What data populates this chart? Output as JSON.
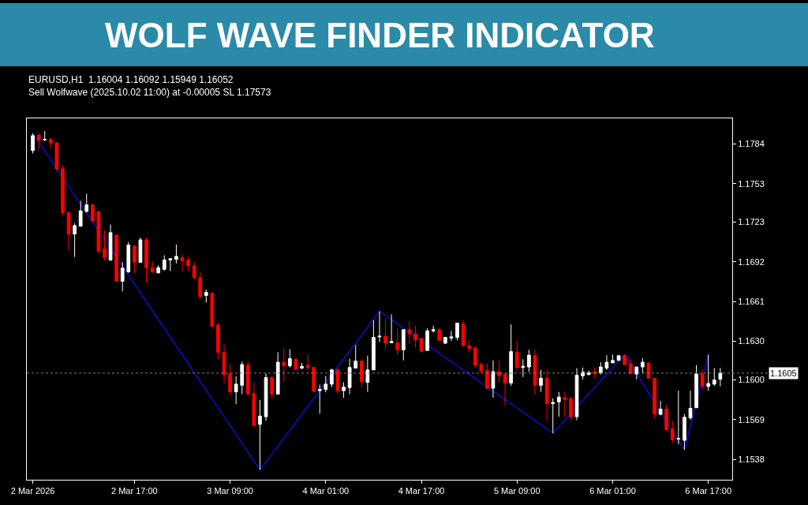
{
  "chart_data": {
    "type": "candlestick",
    "title": "WOLF WAVE FINDER INDICATOR",
    "annotations": [
      "EURUSD,H1  1.16004 1.16092 1.15949 1.16052",
      "Sell Wolfwave (2025.10.02 11:00) at -0.00005 SL 1.17573"
    ],
    "ylim": [
      1.1522,
      1.1804
    ],
    "yticks": [
      1.1784,
      1.1753,
      1.1723,
      1.1692,
      1.1661,
      {
        "value": 1.163,
        "label": "1.1630"
      },
      {
        "value": 1.16,
        "label": "1.1600"
      },
      1.1569,
      1.1538
    ],
    "xlim": [
      "2026-03-01T23:00",
      "2026-03-06T21:00"
    ],
    "xticks": [
      {
        "value": "2026-03-02T00:00",
        "label": "2 Mar 2026"
      },
      {
        "value": "2026-03-02T17:00",
        "label": "2 Mar 17:00"
      },
      {
        "value": "2026-03-03T09:00",
        "label": "3 Mar 09:00"
      },
      {
        "value": "2026-03-04T01:00",
        "label": "4 Mar 01:00"
      },
      {
        "value": "2026-03-04T17:00",
        "label": "4 Mar 17:00"
      },
      {
        "value": "2026-03-05T09:00",
        "label": "5 Mar 09:00"
      },
      {
        "value": "2026-03-06T01:00",
        "label": "6 Mar 01:00"
      },
      {
        "value": "2026-03-06T17:00",
        "label": "6 Mar 17:00"
      }
    ],
    "ref_lines": [
      {
        "axis": "y",
        "value": 1.16052,
        "label": "1.1605",
        "color": "#808080",
        "line_style": "dotted"
      }
    ],
    "grid": false,
    "series": [
      {
        "type": "candlestick",
        "colors": [
          "#ffffff",
          "#ff0000",
          "#ffffff",
          "#ff0000",
          "#ff0000",
          "#ff0000",
          "#ff0000",
          "#ffffff",
          "#ffffff",
          "#ffffff",
          "#ff0000",
          "#ff0000",
          "#ff0000",
          "#ffffff",
          "#ff0000",
          "#ffffff",
          "#ffffff",
          "#ff0000",
          "#ffffff",
          "#ff0000",
          "#ff0000",
          "#ffffff",
          "#ffffff",
          "#ffffff",
          "#ffffff",
          "#ff0000",
          "#ff0000",
          "#ff0000",
          "#ff0000",
          "#ffffff",
          "#ff0000",
          "#ff0000",
          "#ff0000",
          "#ff0000",
          "#ffffff",
          "#ffffff",
          "#ff0000",
          "#ff0000",
          "#ffffff",
          "#ffffff",
          "#ff0000",
          "#ffffff",
          "#ff0000",
          "#ffffff",
          "#ff0000",
          "#ffffff",
          "#ff0000",
          "#ff0000",
          "#ffffff",
          "#ffffff",
          "#ffffff",
          "#ff0000",
          "#ffffff",
          "#ffffff",
          "#ffffff",
          "#ff0000",
          "#ffffff",
          "#ffffff",
          "#ffffff",
          "#ff0000",
          "#ffffff",
          "#ff0000",
          "#ffffff",
          "#ff0000",
          "#ff0000",
          "#ff0000",
          "#ffffff",
          "#ffffff",
          "#ff0000",
          "#ffffff",
          "#ffffff",
          "#ffffff",
          "#ff0000",
          "#ff0000",
          "#ff0000",
          "#ff0000",
          "#ff0000",
          "#ffffff",
          "#ff0000",
          "#ff0000",
          "#ffffff",
          "#ff0000",
          "#ffffff",
          "#ffffff",
          "#ff0000",
          "#ffffff",
          "#ff0000",
          "#ffffff",
          "#ffffff",
          "#ff0000",
          "#ff0000",
          "#ffffff",
          "#ffffff",
          "#ffffff",
          "#ff0000",
          "#ffffff",
          "#ffffff",
          "#ffffff",
          "#ffffff",
          "#ff0000",
          "#ff0000",
          "#ffffff",
          "#ffffff",
          "#ff0000",
          "#ff0000",
          "#ffffff",
          "#ff0000",
          "#ff0000",
          "#ffffff",
          "#ffffff",
          "#ffffff",
          "#ffffff",
          "#ff0000",
          "#ffffff",
          "#ffffff",
          "#ffffff"
        ],
        "x": [
          "2026-03-02T00:00",
          "2026-03-02T01:00",
          "2026-03-02T02:00",
          "2026-03-02T03:00",
          "2026-03-02T04:00",
          "2026-03-02T05:00",
          "2026-03-02T06:00",
          "2026-03-02T07:00",
          "2026-03-02T08:00",
          "2026-03-02T09:00",
          "2026-03-02T10:00",
          "2026-03-02T11:00",
          "2026-03-02T12:00",
          "2026-03-02T13:00",
          "2026-03-02T14:00",
          "2026-03-02T15:00",
          "2026-03-02T16:00",
          "2026-03-02T17:00",
          "2026-03-02T18:00",
          "2026-03-02T19:00",
          "2026-03-02T20:00",
          "2026-03-02T21:00",
          "2026-03-02T22:00",
          "2026-03-02T23:00",
          "2026-03-03T00:00",
          "2026-03-03T01:00",
          "2026-03-03T02:00",
          "2026-03-03T03:00",
          "2026-03-03T04:00",
          "2026-03-03T05:00",
          "2026-03-03T06:00",
          "2026-03-03T07:00",
          "2026-03-03T08:00",
          "2026-03-03T09:00",
          "2026-03-03T10:00",
          "2026-03-03T11:00",
          "2026-03-03T12:00",
          "2026-03-03T13:00",
          "2026-03-03T14:00",
          "2026-03-03T15:00",
          "2026-03-03T16:00",
          "2026-03-03T17:00",
          "2026-03-03T18:00",
          "2026-03-03T19:00",
          "2026-03-03T20:00",
          "2026-03-03T21:00",
          "2026-03-03T22:00",
          "2026-03-03T23:00",
          "2026-03-04T00:00",
          "2026-03-04T01:00",
          "2026-03-04T02:00",
          "2026-03-04T03:00",
          "2026-03-04T04:00",
          "2026-03-04T05:00",
          "2026-03-04T06:00",
          "2026-03-04T07:00",
          "2026-03-04T08:00",
          "2026-03-04T09:00",
          "2026-03-04T10:00",
          "2026-03-04T11:00",
          "2026-03-04T12:00",
          "2026-03-04T13:00",
          "2026-03-04T14:00",
          "2026-03-04T15:00",
          "2026-03-04T16:00",
          "2026-03-04T17:00",
          "2026-03-04T18:00",
          "2026-03-04T19:00",
          "2026-03-04T20:00",
          "2026-03-04T21:00",
          "2026-03-04T22:00",
          "2026-03-04T23:00",
          "2026-03-05T00:00",
          "2026-03-05T01:00",
          "2026-03-05T02:00",
          "2026-03-05T03:00",
          "2026-03-05T04:00",
          "2026-03-05T05:00",
          "2026-03-05T06:00",
          "2026-03-05T07:00",
          "2026-03-05T08:00",
          "2026-03-05T09:00",
          "2026-03-05T10:00",
          "2026-03-05T11:00",
          "2026-03-05T12:00",
          "2026-03-05T13:00",
          "2026-03-05T14:00",
          "2026-03-05T15:00",
          "2026-03-05T16:00",
          "2026-03-05T17:00",
          "2026-03-05T18:00",
          "2026-03-05T19:00",
          "2026-03-05T20:00",
          "2026-03-05T21:00",
          "2026-03-05T22:00",
          "2026-03-05T23:00",
          "2026-03-06T00:00",
          "2026-03-06T01:00",
          "2026-03-06T02:00",
          "2026-03-06T03:00",
          "2026-03-06T04:00",
          "2026-03-06T05:00",
          "2026-03-06T06:00",
          "2026-03-06T07:00",
          "2026-03-06T08:00",
          "2026-03-06T09:00",
          "2026-03-06T10:00",
          "2026-03-06T11:00",
          "2026-03-06T12:00",
          "2026-03-06T13:00",
          "2026-03-06T14:00",
          "2026-03-06T15:00",
          "2026-03-06T16:00",
          "2026-03-06T17:00",
          "2026-03-06T18:00",
          "2026-03-06T19:00"
        ],
        "ohlc": [
          [
            1.17789,
            1.17923,
            1.17766,
            1.17905
          ],
          [
            1.17909,
            1.17923,
            1.17803,
            1.17868
          ],
          [
            1.17872,
            1.17941,
            1.17863,
            1.17877
          ],
          [
            1.17877,
            1.17886,
            1.17803,
            1.17849
          ],
          [
            1.17849,
            1.17858,
            1.17628,
            1.17646
          ],
          [
            1.17646,
            1.17674,
            1.17282,
            1.17305
          ],
          [
            1.17305,
            1.17314,
            1.17009,
            1.17138
          ],
          [
            1.17138,
            1.17222,
            1.16958,
            1.17203
          ],
          [
            1.17198,
            1.17397,
            1.17198,
            1.17318
          ],
          [
            1.17314,
            1.17452,
            1.17305,
            1.17365
          ],
          [
            1.17365,
            1.17374,
            1.17231,
            1.1724
          ],
          [
            1.17314,
            1.17314,
            1.16986,
            1.17005
          ],
          [
            1.17023,
            1.17166,
            1.16931,
            1.16954
          ],
          [
            1.16935,
            1.17212,
            1.16926,
            1.17148
          ],
          [
            1.17129,
            1.17129,
            1.16769,
            1.16769
          ],
          [
            1.16769,
            1.16917,
            1.16691,
            1.16871
          ],
          [
            1.16843,
            1.17074,
            1.16834,
            1.17051
          ],
          [
            1.17046,
            1.17046,
            1.16834,
            1.16917
          ],
          [
            1.16917,
            1.17111,
            1.16912,
            1.17092
          ],
          [
            1.17092,
            1.17111,
            1.1676,
            1.16875
          ],
          [
            1.16875,
            1.16926,
            1.16834,
            1.16843
          ],
          [
            1.16834,
            1.16894,
            1.16834,
            1.16875
          ],
          [
            1.16862,
            1.16972,
            1.16852,
            1.16935
          ],
          [
            1.16935,
            1.16949,
            1.16848,
            1.16945
          ],
          [
            1.1694,
            1.17055,
            1.16908,
            1.16963
          ],
          [
            1.16954,
            1.16982,
            1.16848,
            1.16931
          ],
          [
            1.16935,
            1.16963,
            1.16848,
            1.16889
          ],
          [
            1.16889,
            1.16922,
            1.16783,
            1.16797
          ],
          [
            1.16797,
            1.16838,
            1.16635,
            1.16649
          ],
          [
            1.16658,
            1.16705,
            1.16603,
            1.16682
          ],
          [
            1.16677,
            1.16677,
            1.16409,
            1.16419
          ],
          [
            1.16428,
            1.16446,
            1.1616,
            1.16215
          ],
          [
            1.16215,
            1.1628,
            1.15971,
            1.1604
          ],
          [
            1.16045,
            1.16119,
            1.15879,
            1.15906
          ],
          [
            1.15906,
            1.16026,
            1.15809,
            1.15966
          ],
          [
            1.15957,
            1.16142,
            1.15888,
            1.16119
          ],
          [
            1.16114,
            1.16142,
            1.15888,
            1.15888
          ],
          [
            1.15892,
            1.1598,
            1.15634,
            1.15643
          ],
          [
            1.15652,
            1.15842,
            1.15297,
            1.15717
          ],
          [
            1.15712,
            1.16049,
            1.1568,
            1.16017
          ],
          [
            1.16017,
            1.16031,
            1.15851,
            1.15888
          ],
          [
            1.15888,
            1.16215,
            1.15888,
            1.16137
          ],
          [
            1.16137,
            1.16248,
            1.15985,
            1.16109
          ],
          [
            1.16109,
            1.16239,
            1.16096,
            1.16165
          ],
          [
            1.1616,
            1.16169,
            1.16077,
            1.16082
          ],
          [
            1.16091,
            1.16132,
            1.16082,
            1.16105
          ],
          [
            1.16114,
            1.16197,
            1.16072,
            1.16096
          ],
          [
            1.16096,
            1.161,
            1.15906,
            1.15911
          ],
          [
            1.15915,
            1.15962,
            1.15735,
            1.15925
          ],
          [
            1.15925,
            1.16031,
            1.15902,
            1.15966
          ],
          [
            1.15966,
            1.16086,
            1.15943,
            1.16077
          ],
          [
            1.16077,
            1.16091,
            1.15888,
            1.15915
          ],
          [
            1.15915,
            1.1598,
            1.1586,
            1.15943
          ],
          [
            1.15939,
            1.16165,
            1.15888,
            1.16096
          ],
          [
            1.16091,
            1.16271,
            1.16091,
            1.16146
          ],
          [
            1.16146,
            1.16151,
            1.15939,
            1.15985
          ],
          [
            1.1598,
            1.16188,
            1.15906,
            1.16077
          ],
          [
            1.16077,
            1.16465,
            1.16077,
            1.16331
          ],
          [
            1.16335,
            1.16534,
            1.16294,
            1.1634
          ],
          [
            1.1634,
            1.16479,
            1.16243,
            1.16289
          ],
          [
            1.16289,
            1.16511,
            1.16289,
            1.16299
          ],
          [
            1.16289,
            1.164,
            1.16192,
            1.16234
          ],
          [
            1.16234,
            1.16391,
            1.16151,
            1.16391
          ],
          [
            1.16391,
            1.16455,
            1.1628,
            1.16359
          ],
          [
            1.16359,
            1.16423,
            1.16252,
            1.16312
          ],
          [
            1.16322,
            1.16326,
            1.16215,
            1.16225
          ],
          [
            1.16229,
            1.164,
            1.16229,
            1.16382
          ],
          [
            1.16382,
            1.16423,
            1.16368,
            1.16391
          ],
          [
            1.16391,
            1.16405,
            1.16308,
            1.16308
          ],
          [
            1.16285,
            1.16335,
            1.1628,
            1.16331
          ],
          [
            1.16326,
            1.16382,
            1.16303,
            1.16335
          ],
          [
            1.16331,
            1.16446,
            1.16308,
            1.16442
          ],
          [
            1.16437,
            1.16465,
            1.16257,
            1.16266
          ],
          [
            1.16266,
            1.16308,
            1.16211,
            1.16243
          ],
          [
            1.16248,
            1.16266,
            1.16091,
            1.16114
          ],
          [
            1.16119,
            1.16137,
            1.16045,
            1.16072
          ],
          [
            1.16072,
            1.16128,
            1.15925,
            1.15934
          ],
          [
            1.15934,
            1.16151,
            1.1586,
            1.16063
          ],
          [
            1.16063,
            1.16151,
            1.1598,
            1.16031
          ],
          [
            1.16045,
            1.16045,
            1.158,
            1.15975
          ],
          [
            1.15975,
            1.16432,
            1.15952,
            1.1622
          ],
          [
            1.16215,
            1.16308,
            1.16068,
            1.16096
          ],
          [
            1.16096,
            1.1616,
            1.16022,
            1.16105
          ],
          [
            1.161,
            1.16234,
            1.16063,
            1.16192
          ],
          [
            1.16192,
            1.16234,
            1.15883,
            1.15957
          ],
          [
            1.15957,
            1.16077,
            1.15906,
            1.16012
          ],
          [
            1.16012,
            1.16077,
            1.1568,
            1.15814
          ],
          [
            1.15814,
            1.15855,
            1.15583,
            1.15823
          ],
          [
            1.15828,
            1.15906,
            1.15712,
            1.15865
          ],
          [
            1.1586,
            1.15906,
            1.15712,
            1.15846
          ],
          [
            1.15851,
            1.15869,
            1.15685,
            1.15712
          ],
          [
            1.15712,
            1.16091,
            1.15685,
            1.16035
          ],
          [
            1.16031,
            1.16096,
            1.16003,
            1.16059
          ],
          [
            1.1604,
            1.16072,
            1.1604,
            1.16054
          ],
          [
            1.16063,
            1.16096,
            1.16012,
            1.16049
          ],
          [
            1.16054,
            1.16137,
            1.1604,
            1.161
          ],
          [
            1.16091,
            1.16192,
            1.16077,
            1.16137
          ],
          [
            1.16132,
            1.16197,
            1.16132,
            1.16151
          ],
          [
            1.16151,
            1.16192,
            1.16151,
            1.16188
          ],
          [
            1.16188,
            1.16197,
            1.16119,
            1.16119
          ],
          [
            1.16123,
            1.1616,
            1.16049,
            1.16049
          ],
          [
            1.16045,
            1.161,
            1.16003,
            1.161
          ],
          [
            1.161,
            1.16169,
            1.16049,
            1.16137
          ],
          [
            1.16132,
            1.16137,
            1.16012,
            1.16012
          ],
          [
            1.16012,
            1.16012,
            1.15703,
            1.15735
          ],
          [
            1.15731,
            1.15837,
            1.15722,
            1.15772
          ],
          [
            1.15772,
            1.15805,
            1.15602,
            1.15611
          ],
          [
            1.15616,
            1.1568,
            1.15509,
            1.15532
          ],
          [
            1.15537,
            1.15915,
            1.15496,
            1.15542
          ],
          [
            1.15528,
            1.15735,
            1.15454,
            1.15708
          ],
          [
            1.15703,
            1.15915,
            1.15689,
            1.15777
          ],
          [
            1.15782,
            1.16114,
            1.15782,
            1.16045
          ],
          [
            1.16045,
            1.16082,
            1.15929,
            1.15952
          ],
          [
            1.15948,
            1.16197,
            1.15915,
            1.15971
          ],
          [
            1.15966,
            1.16091,
            1.15952,
            1.15999
          ],
          [
            1.16004,
            1.16092,
            1.15949,
            1.16052
          ]
        ]
      },
      {
        "type": "line",
        "color": "#1010ff",
        "line_style": "solid",
        "marker": "none",
        "x": [
          "2026-03-02T00:00",
          "2026-03-03T14:00",
          "2026-03-04T10:00",
          "2026-03-05T15:00",
          "2026-03-06T03:00",
          "2026-03-06T13:00",
          "2026-03-06T17:00"
        ],
        "values": [
          1.17923,
          1.15297,
          1.16534,
          1.15583,
          1.16197,
          1.15454,
          1.16197
        ]
      }
    ]
  }
}
